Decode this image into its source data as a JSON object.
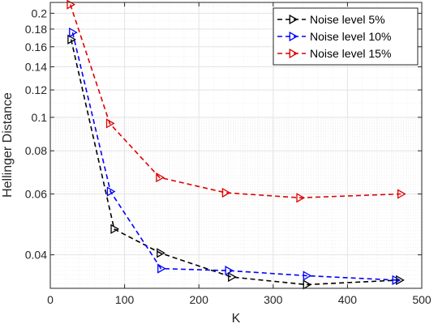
{
  "chart_data": {
    "type": "line",
    "title": "",
    "xlabel": "K",
    "ylabel": "Hellinger Distance",
    "xlim": [
      0,
      500
    ],
    "ylim": [
      0.032,
      0.215
    ],
    "y_scale": "log",
    "grid": true,
    "minor_grid": true,
    "legend_position": "top-right",
    "x_ticks": [
      0,
      100,
      200,
      300,
      400,
      500
    ],
    "x_tick_labels": [
      "0",
      "100",
      "200",
      "300",
      "400",
      "500"
    ],
    "y_ticks": [
      0.04,
      0.06,
      0.08,
      0.1,
      0.12,
      0.14,
      0.16,
      0.18,
      0.2
    ],
    "y_tick_labels": [
      "0.04",
      "0.06",
      "0.08",
      "0.1",
      "0.12",
      "0.14",
      "0.16",
      "0.18",
      "0.2"
    ],
    "series": [
      {
        "name": "Noise level 5%",
        "color": "#000000",
        "marker": "right-triangle",
        "line_style": "dashed",
        "x": [
          28,
          86,
          148,
          244,
          345,
          470
        ],
        "y": [
          0.168,
          0.0475,
          0.0405,
          0.0345,
          0.0328,
          0.0338
        ]
      },
      {
        "name": "Noise level 10%",
        "color": "#0000ff",
        "marker": "right-triangle",
        "line_style": "dashed",
        "x": [
          30,
          81,
          149,
          240,
          345,
          465
        ],
        "y": [
          0.176,
          0.061,
          0.0365,
          0.036,
          0.0348,
          0.0338
        ]
      },
      {
        "name": "Noise level 15%",
        "color": "#e00000",
        "marker": "right-triangle",
        "line_style": "dashed",
        "x": [
          27,
          80,
          147,
          236,
          336,
          472
        ],
        "y": [
          0.212,
          0.096,
          0.067,
          0.0605,
          0.0585,
          0.06
        ]
      }
    ]
  }
}
